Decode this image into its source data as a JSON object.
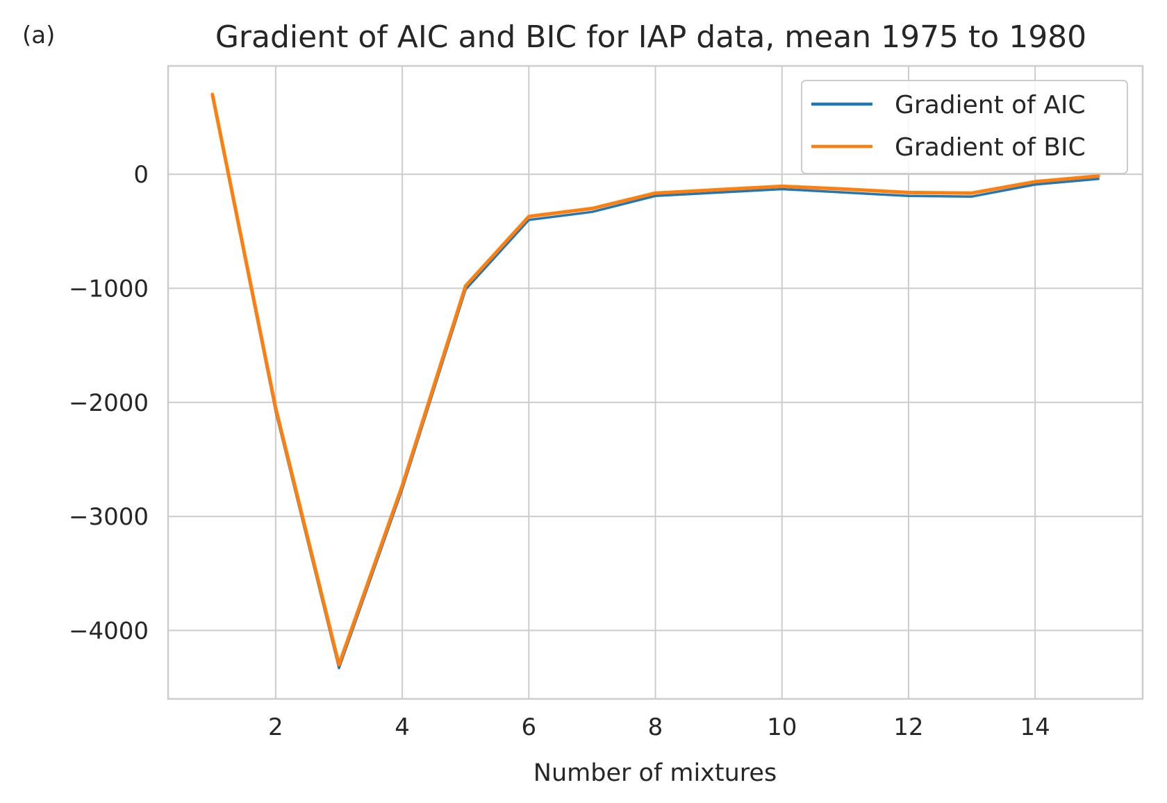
{
  "panel_label": "(a)",
  "chart_data": {
    "type": "line",
    "title": "Gradient of AIC and BIC for IAP data, mean 1975 to 1980",
    "xlabel": "Number of mixtures",
    "ylabel": "",
    "xlim": [
      0.3,
      15.7
    ],
    "ylim": [
      -4600,
      950
    ],
    "xticks": [
      2,
      4,
      6,
      8,
      10,
      12,
      14
    ],
    "yticks": [
      0,
      -1000,
      -2000,
      -3000,
      -4000
    ],
    "ytick_labels": [
      "0",
      "−1000",
      "−2000",
      "−3000",
      "−4000"
    ],
    "grid": true,
    "legend_position": "upper right",
    "x": [
      1,
      2,
      3,
      4,
      5,
      6,
      7,
      8,
      9,
      10,
      11,
      12,
      13,
      14,
      15
    ],
    "series": [
      {
        "name": "Gradient of AIC",
        "color": "#1f77b4",
        "values": [
          680,
          -2080,
          -4330,
          -2760,
          -1010,
          -400,
          -330,
          -190,
          -160,
          -130,
          -160,
          -190,
          -195,
          -90,
          -40
        ]
      },
      {
        "name": "Gradient of BIC",
        "color": "#ff7f0e",
        "values": [
          700,
          -2050,
          -4300,
          -2730,
          -980,
          -370,
          -300,
          -165,
          -135,
          -105,
          -130,
          -160,
          -165,
          -65,
          -15
        ]
      }
    ]
  }
}
